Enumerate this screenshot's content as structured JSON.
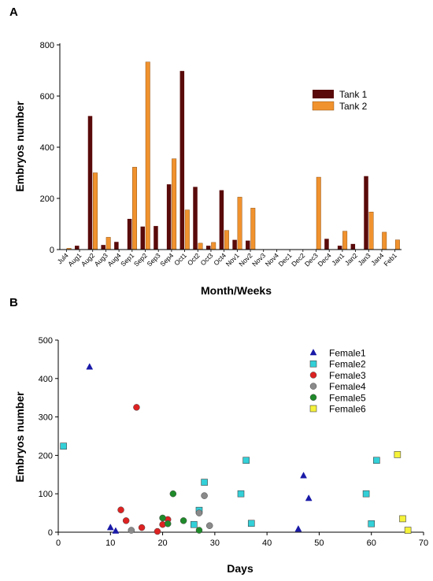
{
  "chart_data": [
    {
      "panel_label": "A",
      "type": "bar",
      "xlabel": "Month/Weeks",
      "ylabel": "Embryos number",
      "ylim": [
        0,
        800
      ],
      "yticks": [
        0,
        200,
        400,
        600,
        800
      ],
      "categories": [
        "Jul4",
        "Aug1",
        "Aug2",
        "Aug3",
        "Aug4",
        "Sep1",
        "Sep2",
        "Sep3",
        "Sep4",
        "Oct1",
        "Oct2",
        "Oct3",
        "Oct4",
        "Nov1",
        "Nov2",
        "Nov3",
        "Nov4",
        "Dec1",
        "Dec2",
        "Dec3",
        "Dec4",
        "Jan1",
        "Jan2",
        "Jan3",
        "Jan4",
        "Feb1"
      ],
      "series": [
        {
          "name": "Tank 1",
          "color": "#5a0a0a",
          "values": [
            0,
            15,
            522,
            18,
            30,
            120,
            90,
            92,
            255,
            698,
            245,
            15,
            232,
            38,
            35,
            0,
            0,
            0,
            0,
            0,
            42,
            15,
            22,
            287,
            0,
            0
          ]
        },
        {
          "name": "Tank 2",
          "color": "#f0922e",
          "values": [
            5,
            0,
            300,
            48,
            0,
            322,
            733,
            0,
            355,
            155,
            25,
            28,
            75,
            205,
            162,
            0,
            0,
            0,
            0,
            283,
            0,
            72,
            0,
            147,
            68,
            38
          ]
        }
      ],
      "legend_position": "top-right",
      "grid": false
    },
    {
      "panel_label": "B",
      "type": "scatter",
      "xlabel": "Days",
      "ylabel": "Embryos number",
      "xlim": [
        0,
        70
      ],
      "ylim": [
        0,
        500
      ],
      "xticks": [
        0,
        10,
        20,
        30,
        40,
        50,
        60,
        70
      ],
      "yticks": [
        0,
        100,
        200,
        300,
        400,
        500
      ],
      "legend_position": "top-right",
      "grid": false,
      "series": [
        {
          "name": "Female1",
          "marker": "triangle",
          "color": "#1a1aa8",
          "points": [
            [
              6,
              430
            ],
            [
              10,
              12
            ],
            [
              11,
              3
            ],
            [
              46,
              8
            ],
            [
              47,
              147
            ],
            [
              48,
              88
            ]
          ]
        },
        {
          "name": "Female2",
          "marker": "square",
          "color": "#33d0d8",
          "points": [
            [
              1,
              224
            ],
            [
              26,
              20
            ],
            [
              27,
              57
            ],
            [
              28,
              130
            ],
            [
              35,
              100
            ],
            [
              36,
              187
            ],
            [
              37,
              23
            ],
            [
              59,
              100
            ],
            [
              60,
              22
            ],
            [
              61,
              187
            ]
          ]
        },
        {
          "name": "Female3",
          "marker": "circle",
          "color": "#dd2222",
          "points": [
            [
              12,
              58
            ],
            [
              13,
              30
            ],
            [
              15,
              325
            ],
            [
              16,
              12
            ],
            [
              19,
              2
            ],
            [
              20,
              20
            ],
            [
              21,
              33
            ]
          ]
        },
        {
          "name": "Female4",
          "marker": "circle",
          "color": "#8a8a8a",
          "points": [
            [
              14,
              5
            ],
            [
              27,
              50
            ],
            [
              28,
              95
            ],
            [
              29,
              17
            ]
          ]
        },
        {
          "name": "Female5",
          "marker": "circle",
          "color": "#1f8a2a",
          "points": [
            [
              20,
              37
            ],
            [
              21,
              22
            ],
            [
              22,
              100
            ],
            [
              24,
              30
            ],
            [
              27,
              5
            ]
          ]
        },
        {
          "name": "Female6",
          "marker": "square",
          "color": "#f5f23a",
          "points": [
            [
              65,
              202
            ],
            [
              66,
              35
            ],
            [
              67,
              5
            ]
          ]
        }
      ]
    }
  ]
}
